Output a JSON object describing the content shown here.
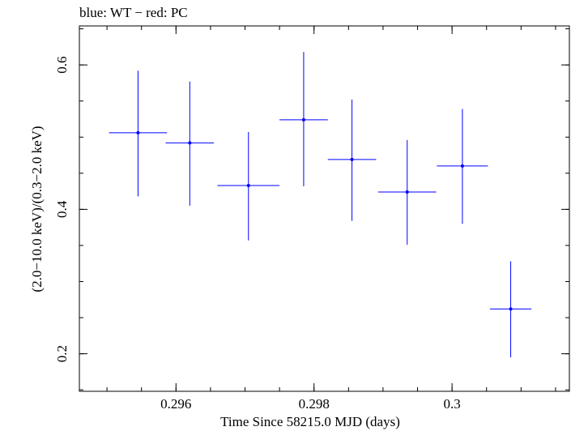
{
  "chart_data": {
    "type": "scatter",
    "title": "blue: WT − red: PC",
    "xlabel": "Time Since 58215.0 MJD (days)",
    "ylabel": "(2.0−10.0 keV)/(0.3−2.0 keV)",
    "xlim": [
      0.2946,
      0.3017
    ],
    "ylim": [
      0.148,
      0.654
    ],
    "x_ticks": [
      0.296,
      0.298,
      0.3
    ],
    "x_tick_labels": [
      "0.296",
      "0.298",
      "0.3"
    ],
    "y_ticks": [
      0.2,
      0.4,
      0.6
    ],
    "y_tick_labels": [
      "0.2",
      "0.4",
      "0.6"
    ],
    "x_minor_step": 0.0005,
    "y_minor_step": 0.05,
    "grid": false,
    "series": [
      {
        "color": "#0000ff",
        "points": [
          {
            "x": 0.29545,
            "y": 0.506,
            "xerr": 0.00042,
            "yerr_lo": 0.088,
            "yerr_hi": 0.086
          },
          {
            "x": 0.2962,
            "y": 0.492,
            "xerr": 0.00035,
            "yerr_lo": 0.087,
            "yerr_hi": 0.085
          },
          {
            "x": 0.29705,
            "y": 0.433,
            "xerr": 0.00045,
            "yerr_lo": 0.076,
            "yerr_hi": 0.074
          },
          {
            "x": 0.29785,
            "y": 0.524,
            "xerr": 0.00035,
            "yerr_lo": 0.092,
            "yerr_hi": 0.094
          },
          {
            "x": 0.29855,
            "y": 0.469,
            "xerr": 0.00035,
            "yerr_lo": 0.085,
            "yerr_hi": 0.083
          },
          {
            "x": 0.29935,
            "y": 0.424,
            "xerr": 0.00042,
            "yerr_lo": 0.073,
            "yerr_hi": 0.072
          },
          {
            "x": 0.30015,
            "y": 0.46,
            "xerr": 0.00037,
            "yerr_lo": 0.08,
            "yerr_hi": 0.079
          },
          {
            "x": 0.30085,
            "y": 0.262,
            "xerr": 0.0003,
            "yerr_lo": 0.067,
            "yerr_hi": 0.066
          }
        ]
      }
    ]
  }
}
